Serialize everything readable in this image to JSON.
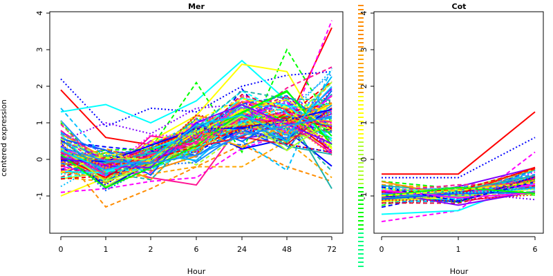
{
  "chart_data": [
    {
      "type": "line",
      "title": "Mer",
      "xlabel": "Hour",
      "ylabel": "centered expression",
      "x": [
        "0",
        "1",
        "2",
        "6",
        "24",
        "48",
        "72"
      ],
      "ylim": [
        -2,
        4
      ],
      "yticks": [
        -1,
        0,
        1,
        2,
        3,
        4
      ],
      "grid": false,
      "series_count": 110,
      "series": [
        {
          "values": [
            1.9,
            0.6,
            0.4,
            0.9,
            1.2,
            1.0,
            3.6
          ]
        },
        {
          "values": [
            -0.9,
            -0.8,
            -0.6,
            -0.5,
            0.3,
            0.7,
            3.8
          ]
        },
        {
          "values": [
            2.2,
            0.9,
            1.4,
            1.3,
            2.0,
            2.3,
            2.4
          ]
        },
        {
          "values": [
            1.3,
            1.5,
            1.0,
            1.6,
            2.7,
            1.6,
            0.5
          ]
        },
        {
          "values": [
            1.0,
            -0.3,
            0.3,
            2.1,
            0.2,
            3.0,
            1.0
          ]
        },
        {
          "values": [
            -1.0,
            -0.5,
            0.5,
            1.2,
            2.6,
            2.4,
            0.3
          ]
        },
        {
          "values": [
            0.2,
            -1.3,
            -0.8,
            -0.2,
            0.4,
            -0.2,
            -0.6
          ]
        },
        {
          "values": [
            0.5,
            1.0,
            0.7,
            1.4,
            1.5,
            1.5,
            1.6
          ]
        },
        {
          "values": [
            -0.3,
            -0.2,
            -0.5,
            -0.7,
            1.0,
            1.2,
            0.9
          ]
        },
        {
          "values": [
            1.4,
            0.0,
            0.4,
            1.0,
            0.5,
            -0.3,
            2.5
          ]
        },
        {
          "values": [
            0.0,
            0.1,
            0.2,
            0.9,
            1.1,
            1.3,
            -0.8
          ]
        },
        {
          "values": [
            -0.5,
            -0.6,
            -0.4,
            -0.2,
            -0.2,
            0.5,
            -0.5
          ]
        }
      ]
    },
    {
      "type": "line",
      "title": "Cot",
      "xlabel": "Hour",
      "x": [
        "0",
        "1",
        "6"
      ],
      "ylim": [
        -2,
        4
      ],
      "yticks": [
        -1,
        0,
        1,
        2,
        3,
        4
      ],
      "grid": false,
      "series_count": 70,
      "series": [
        {
          "values": [
            -0.4,
            -0.4,
            1.3
          ]
        },
        {
          "values": [
            -1.7,
            -1.4,
            0.2
          ]
        },
        {
          "values": [
            -0.5,
            -0.5,
            0.6
          ]
        },
        {
          "values": [
            -1.5,
            -1.4,
            -0.6
          ]
        },
        {
          "values": [
            -0.6,
            -0.8,
            -0.9
          ]
        },
        {
          "values": [
            -0.8,
            -0.9,
            -0.8
          ]
        },
        {
          "values": [
            -1.0,
            -1.0,
            -0.5
          ]
        },
        {
          "values": [
            -1.1,
            -0.9,
            -1.1
          ]
        }
      ]
    }
  ],
  "palette": [
    "#ff0000",
    "#ff00ff",
    "#0000ff",
    "#00ffff",
    "#00ff00",
    "#ffff00",
    "#ff8c00",
    "#8000ff",
    "#ff1493",
    "#00bfff",
    "#20b2aa",
    "#ffa500",
    "#1e90ff",
    "#adff2f",
    "#dc143c",
    "#0064ff"
  ],
  "legend_strip_colors": [
    "#ff8c00",
    "#ffa500",
    "#ffff00",
    "#adff2f",
    "#00ff00",
    "#00ff80"
  ]
}
